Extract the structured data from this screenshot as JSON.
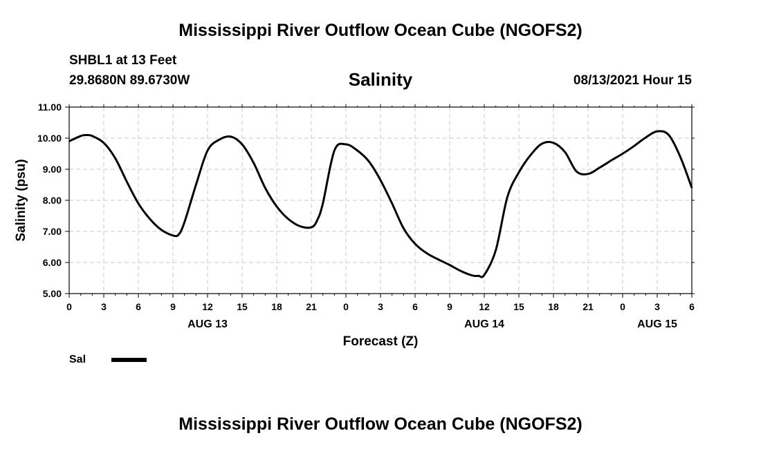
{
  "header": {
    "title": "Mississippi River Outflow Ocean Cube (NGOFS2)",
    "station": "SHBL1 at 13 Feet",
    "coords": "29.8680N  89.6730W",
    "subtitle": "Salinity",
    "datetime": "08/13/2021 Hour 15"
  },
  "footer": {
    "title": "Mississippi River Outflow Ocean Cube (NGOFS2)"
  },
  "colors": {
    "line": "#000000",
    "grid": "#c8c8c8"
  },
  "chart_data": {
    "type": "line",
    "title": "Salinity",
    "xlabel": "Forecast (Z)",
    "ylabel": "Salinity (psu)",
    "ylim": [
      5.0,
      11.0
    ],
    "xlim": [
      0,
      54
    ],
    "y_ticks": [
      "5.00",
      "6.00",
      "7.00",
      "8.00",
      "9.00",
      "10.00",
      "11.00"
    ],
    "x_tick_labels": [
      "0",
      "3",
      "6",
      "9",
      "12",
      "15",
      "18",
      "21",
      "0",
      "3",
      "6",
      "9",
      "12",
      "15",
      "18",
      "21",
      "0",
      "3",
      "6"
    ],
    "date_labels": [
      {
        "label": "AUG 13",
        "hour": 12
      },
      {
        "label": "AUG 14",
        "hour": 36
      },
      {
        "label": "AUG 15",
        "hour": 51
      }
    ],
    "grid": true,
    "legend": "bottom-left",
    "series": [
      {
        "name": "Sal",
        "x": [
          0,
          1,
          1.5,
          2,
          3,
          4,
          5,
          6,
          7,
          8,
          9,
          9.5,
          10,
          11,
          12,
          13,
          14,
          15,
          16,
          17,
          18,
          19,
          20,
          21,
          21.5,
          22,
          23,
          24,
          25,
          26,
          27,
          28,
          29,
          30,
          31,
          32,
          33,
          34,
          35,
          35.5,
          36,
          37,
          38,
          39,
          40,
          41,
          42,
          43,
          44,
          45,
          46,
          47,
          48,
          49,
          50,
          51,
          52,
          53,
          54
        ],
        "values": [
          9.9,
          10.07,
          10.1,
          10.07,
          9.85,
          9.35,
          8.6,
          7.9,
          7.4,
          7.05,
          6.87,
          6.9,
          7.3,
          8.5,
          9.6,
          9.95,
          10.05,
          9.8,
          9.2,
          8.4,
          7.8,
          7.4,
          7.17,
          7.13,
          7.35,
          7.9,
          9.6,
          9.8,
          9.6,
          9.25,
          8.65,
          7.9,
          7.1,
          6.6,
          6.3,
          6.1,
          5.92,
          5.72,
          5.58,
          5.57,
          5.6,
          6.4,
          8.1,
          8.9,
          9.45,
          9.82,
          9.85,
          9.55,
          8.93,
          8.85,
          9.05,
          9.28,
          9.5,
          9.75,
          10.02,
          10.22,
          10.1,
          9.4,
          8.4
        ]
      }
    ],
    "legend_label": "Sal"
  }
}
